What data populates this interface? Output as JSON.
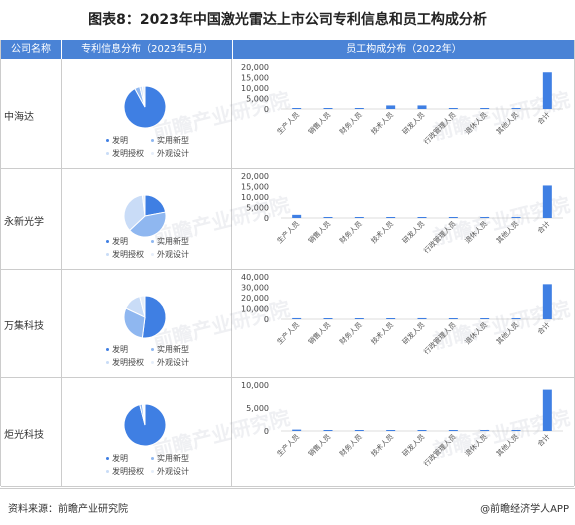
{
  "title": "图表8：2023年中国激光雷达上市公司专利信息和员工构成分析",
  "header": {
    "col1": "公司名称",
    "col2": "专利信息分布（2023年5月）",
    "col3": "员工构成分布（2022年）"
  },
  "legend": [
    "发明",
    "实用新型",
    "发明授权",
    "外观设计"
  ],
  "watermark": "前瞻产业研究院",
  "footer": {
    "source": "资料来源：前瞻产业研究院",
    "brand": "@前瞻经济学人APP"
  },
  "colors": {
    "header": "#4a83d6",
    "bar": "#3f7fe3",
    "pie": [
      "#3f7fe3",
      "#8fb7f0",
      "#c9dcf7",
      "#e6eef9"
    ]
  },
  "chart_data": [
    {
      "type": "pie",
      "company": "中海达",
      "labels": [
        "发明",
        "实用新型",
        "发明授权",
        "外观设计"
      ],
      "values": [
        92,
        4,
        2,
        2
      ],
      "bar": {
        "type": "bar",
        "categories": [
          "生产人员",
          "销售人员",
          "财务人员",
          "技术人员",
          "研发人员",
          "行政管理人员",
          "退休人员",
          "其他人员",
          "合计"
        ],
        "values": [
          100,
          400,
          100,
          1700,
          1700,
          400,
          0,
          100,
          17500
        ],
        "yticks": [
          "20,000",
          "15,000",
          "10,000",
          "5,000",
          "0"
        ],
        "ylim": [
          0,
          20000
        ]
      }
    },
    {
      "type": "pie",
      "company": "永新光学",
      "labels": [
        "发明",
        "实用新型",
        "发明授权",
        "外观设计"
      ],
      "values": [
        22,
        41,
        35,
        2
      ],
      "bar": {
        "type": "bar",
        "categories": [
          "生产人员",
          "销售人员",
          "财务人员",
          "技术人员",
          "研发人员",
          "行政管理人员",
          "退休人员",
          "其他人员",
          "合计"
        ],
        "values": [
          1500,
          200,
          100,
          200,
          300,
          200,
          0,
          0,
          15500
        ],
        "yticks": [
          "20,000",
          "15,000",
          "10,000",
          "5,000",
          "0"
        ],
        "ylim": [
          0,
          20000
        ]
      }
    },
    {
      "type": "pie",
      "company": "万集科技",
      "labels": [
        "发明",
        "实用新型",
        "发明授权",
        "外观设计"
      ],
      "values": [
        52,
        30,
        14,
        4
      ],
      "bar": {
        "type": "bar",
        "categories": [
          "生产人员",
          "销售人员",
          "财务人员",
          "技术人员",
          "研发人员",
          "行政管理人员",
          "退休人员",
          "其他人员",
          "合计"
        ],
        "values": [
          1000,
          500,
          100,
          800,
          1000,
          300,
          0,
          200,
          33000
        ],
        "yticks": [
          "40,000",
          "30,000",
          "20,000",
          "10,000",
          "0"
        ],
        "ylim": [
          0,
          40000
        ]
      }
    },
    {
      "type": "pie",
      "company": "炬光科技",
      "labels": [
        "发明",
        "实用新型",
        "发明授权",
        "外观设计"
      ],
      "values": [
        96,
        2,
        1,
        1
      ],
      "bar": {
        "type": "bar",
        "categories": [
          "生产人员",
          "销售人员",
          "财务人员",
          "技术人员",
          "研发人员",
          "行政管理人员",
          "退休人员",
          "其他人员",
          "合计"
        ],
        "values": [
          300,
          100,
          50,
          150,
          200,
          80,
          0,
          40,
          9000
        ],
        "yticks": [
          "10,000",
          "5,000",
          "0"
        ],
        "ylim": [
          0,
          10000
        ]
      }
    }
  ]
}
